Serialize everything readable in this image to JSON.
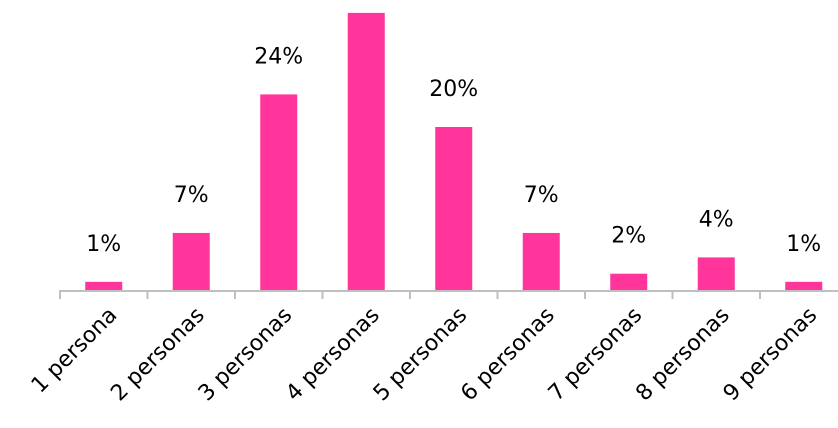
{
  "chart_data": {
    "type": "bar",
    "categories": [
      "1 persona",
      "2 personas",
      "3 personas",
      "4 personas",
      "5 personas",
      "6 personas",
      "7 personas",
      "8 personas",
      "9 personas"
    ],
    "values": [
      1,
      7,
      24,
      34,
      20,
      7,
      2,
      4,
      1
    ],
    "value_labels": [
      "1%",
      "7%",
      "24%",
      null,
      "20%",
      "7%",
      "2%",
      "4%",
      "1%"
    ],
    "color": "#ff359c"
  }
}
